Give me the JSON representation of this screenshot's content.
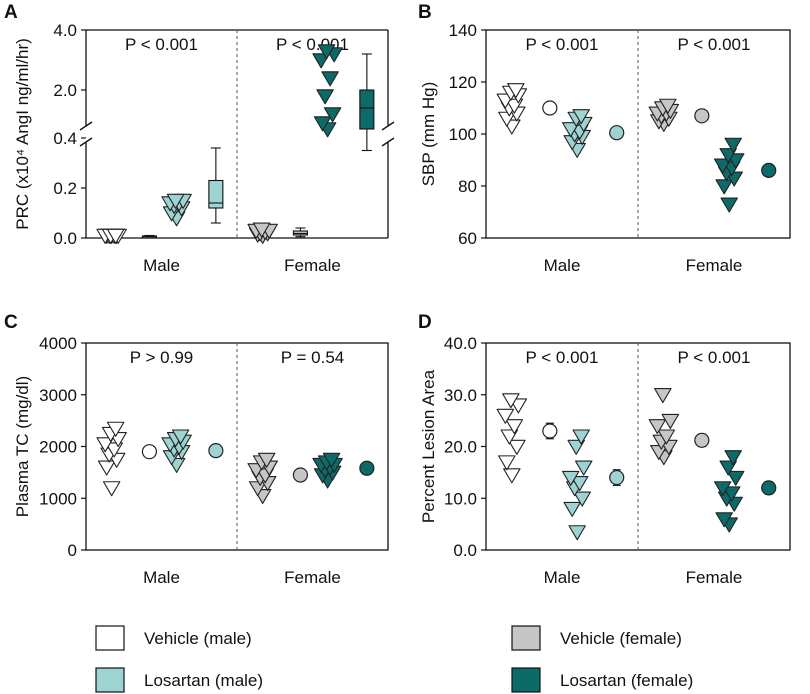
{
  "colors": {
    "vehicle_male": "#ffffff",
    "losartan_male": "#9dd3d2",
    "vehicle_female": "#c6c6c6",
    "losartan_female": "#0c6b69",
    "stroke": "#222222"
  },
  "legend": [
    {
      "key": "vehicle_male",
      "label": "Vehicle (male)"
    },
    {
      "key": "losartan_male",
      "label": "Losartan (male)"
    },
    {
      "key": "vehicle_female",
      "label": "Vehicle (female)"
    },
    {
      "key": "losartan_female",
      "label": "Losartan (female)"
    }
  ],
  "chart_data": [
    {
      "panel": "A",
      "type": "scatter",
      "ylabel": "PRC (x10⁴ AngI ng/ml/hr)",
      "axis_break": true,
      "ylim_lower": [
        0,
        0.4
      ],
      "ylim_upper": [
        0.4,
        4.0
      ],
      "yticks_lower": [
        "0.0",
        "0.2",
        "0.4"
      ],
      "yticks_upper": [
        "2.0",
        "4.0"
      ],
      "groups": [
        "Male",
        "Female"
      ],
      "p_values": [
        "P < 0.001",
        "P < 0.001"
      ],
      "series": [
        {
          "key": "vehicle_male",
          "group": "Male",
          "points": [
            0.01,
            0.01,
            0.01,
            0.01,
            0.01,
            0.01,
            0.01,
            0.01,
            0.01
          ],
          "summary": {
            "kind": "box",
            "q1": 0.003,
            "median": 0.005,
            "q3": 0.008,
            "min": 0.001,
            "max": 0.01
          }
        },
        {
          "key": "losartan_male",
          "group": "Male",
          "points": [
            0.08,
            0.1,
            0.12,
            0.13,
            0.14,
            0.14,
            0.15,
            0.15
          ],
          "summary": {
            "kind": "box",
            "q1": 0.12,
            "median": 0.14,
            "q3": 0.23,
            "min": 0.06,
            "max": 0.36
          }
        },
        {
          "key": "vehicle_female",
          "group": "Female",
          "points": [
            0.01,
            0.015,
            0.02,
            0.02,
            0.025,
            0.03,
            0.03,
            0.035
          ],
          "summary": {
            "kind": "box",
            "q1": 0.012,
            "median": 0.018,
            "q3": 0.028,
            "min": 0.005,
            "max": 0.04
          }
        },
        {
          "key": "losartan_female",
          "group": "Female",
          "points": [
            0.7,
            0.9,
            1.2,
            1.8,
            2.4,
            3.0,
            3.2,
            3.3
          ],
          "summary": {
            "kind": "box",
            "q1": 0.7,
            "median": 1.4,
            "q3": 2.0,
            "min": 0.35,
            "max": 3.2
          }
        }
      ]
    },
    {
      "panel": "B",
      "type": "scatter",
      "ylabel": "SBP (mm Hg)",
      "ylim": [
        60,
        140
      ],
      "yticks": [
        "60",
        "80",
        "100",
        "120",
        "140"
      ],
      "groups": [
        "Male",
        "Female"
      ],
      "p_values": [
        "P < 0.001",
        "P < 0.001"
      ],
      "series": [
        {
          "key": "vehicle_male",
          "group": "Male",
          "points": [
            103,
            106,
            108,
            110,
            111,
            113,
            115,
            116,
            117
          ],
          "summary": {
            "kind": "mean",
            "mean": 110,
            "err": 1.2
          }
        },
        {
          "key": "losartan_male",
          "group": "Male",
          "points": [
            94,
            97,
            99,
            100,
            101,
            102,
            104,
            106,
            107
          ],
          "summary": {
            "kind": "mean",
            "mean": 100.5,
            "err": 1.2
          }
        },
        {
          "key": "vehicle_female",
          "group": "Female",
          "points": [
            104,
            105,
            106,
            107,
            108,
            108,
            109,
            110,
            111
          ],
          "summary": {
            "kind": "mean",
            "mean": 107,
            "err": 0.8
          }
        },
        {
          "key": "losartan_female",
          "group": "Female",
          "points": [
            73,
            80,
            83,
            85,
            87,
            88,
            90,
            92,
            96
          ],
          "summary": {
            "kind": "mean",
            "mean": 86,
            "err": 2.0
          }
        }
      ]
    },
    {
      "panel": "C",
      "type": "scatter",
      "ylabel": "Plasma TC (mg/dl)",
      "ylim": [
        0,
        4000
      ],
      "yticks": [
        "0",
        "1000",
        "2000",
        "3000",
        "4000"
      ],
      "groups": [
        "Male",
        "Female"
      ],
      "p_values": [
        "P > 0.99",
        "P = 0.54"
      ],
      "series": [
        {
          "key": "vehicle_male",
          "group": "Male",
          "points": [
            1200,
            1600,
            1750,
            1850,
            1950,
            2050,
            2150,
            2250,
            2350
          ],
          "summary": {
            "kind": "mean",
            "mean": 1900,
            "err": 90
          }
        },
        {
          "key": "losartan_male",
          "group": "Male",
          "points": [
            1650,
            1800,
            1900,
            1950,
            2000,
            2050,
            2100,
            2150,
            2200
          ],
          "summary": {
            "kind": "mean",
            "mean": 1920,
            "err": 60
          }
        },
        {
          "key": "vehicle_female",
          "group": "Female",
          "points": [
            1050,
            1200,
            1300,
            1400,
            1450,
            1550,
            1600,
            1700,
            1750
          ],
          "summary": {
            "kind": "mean",
            "mean": 1450,
            "err": 70
          }
        },
        {
          "key": "losartan_female",
          "group": "Female",
          "points": [
            1350,
            1450,
            1500,
            1550,
            1600,
            1650,
            1650,
            1700,
            1750
          ],
          "summary": {
            "kind": "mean",
            "mean": 1580,
            "err": 40
          }
        }
      ]
    },
    {
      "panel": "D",
      "type": "scatter",
      "ylabel": "Percent Lesion Area",
      "ylim": [
        0,
        40
      ],
      "yticks": [
        "0.0",
        "10.0",
        "20.0",
        "30.0",
        "40.0"
      ],
      "groups": [
        "Male",
        "Female"
      ],
      "p_values": [
        "P < 0.001",
        "P < 0.001"
      ],
      "series": [
        {
          "key": "vehicle_male",
          "group": "Male",
          "points": [
            14.5,
            17,
            20,
            22,
            24,
            26,
            28,
            29
          ],
          "summary": {
            "kind": "mean",
            "mean": 23,
            "err": 1.5
          }
        },
        {
          "key": "losartan_male",
          "group": "Male",
          "points": [
            3.5,
            8,
            10,
            12,
            13,
            14,
            16,
            20,
            22
          ],
          "summary": {
            "kind": "mean",
            "mean": 14,
            "err": 1.5
          }
        },
        {
          "key": "vehicle_female",
          "group": "Female",
          "points": [
            18,
            19,
            20,
            21,
            22,
            24,
            25,
            30
          ],
          "summary": {
            "kind": "mean",
            "mean": 21.2,
            "err": 1.2
          }
        },
        {
          "key": "losartan_female",
          "group": "Female",
          "points": [
            5,
            6,
            9,
            10,
            11,
            12,
            14,
            16,
            18
          ],
          "summary": {
            "kind": "mean",
            "mean": 12,
            "err": 1.2
          }
        }
      ]
    }
  ]
}
